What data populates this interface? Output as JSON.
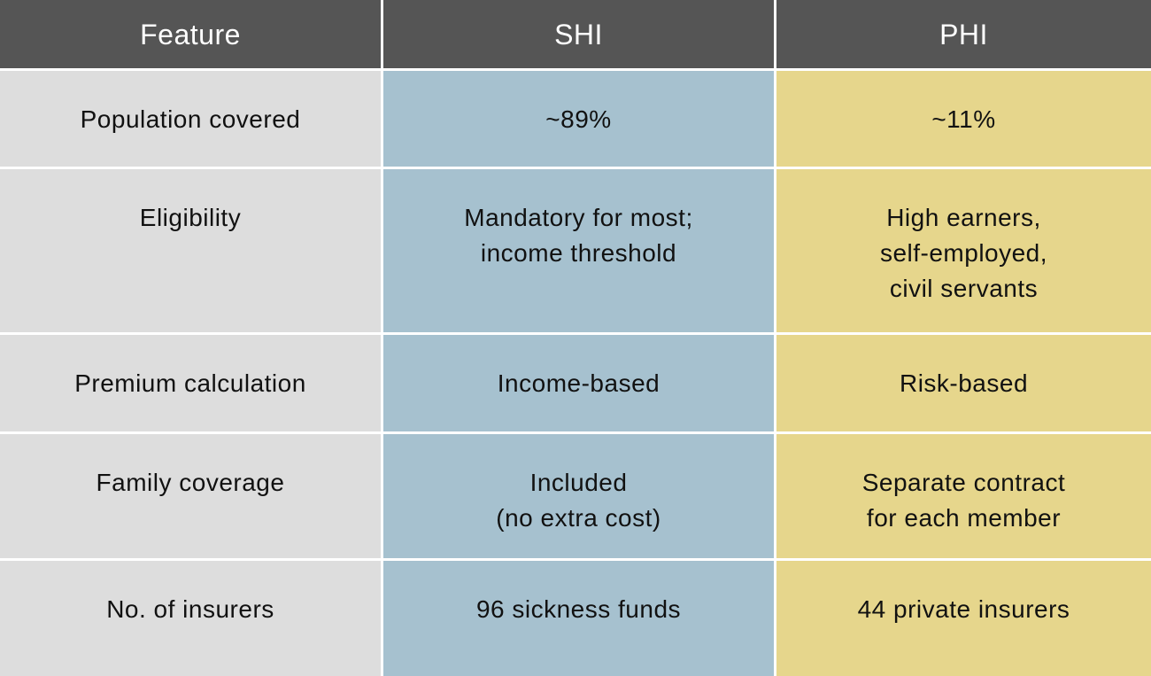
{
  "table": {
    "header": [
      "Feature",
      "SHI",
      "PHI"
    ],
    "rows": [
      [
        [
          "Population covered"
        ],
        [
          "~89%"
        ],
        [
          "~11%"
        ]
      ],
      [
        [
          "Eligibility"
        ],
        [
          "Mandatory for most;",
          "income threshold"
        ],
        [
          "High earners,",
          "self-employed,",
          "civil servants"
        ]
      ],
      [
        [
          "Premium calculation"
        ],
        [
          "Income-based"
        ],
        [
          "Risk-based"
        ]
      ],
      [
        [
          "Family coverage"
        ],
        [
          "Included",
          "(no extra cost)"
        ],
        [
          "Separate contract",
          "for each member"
        ]
      ],
      [
        [
          "No. of insurers"
        ],
        [
          "96 sickness funds"
        ],
        [
          "44 private insurers"
        ]
      ]
    ]
  }
}
